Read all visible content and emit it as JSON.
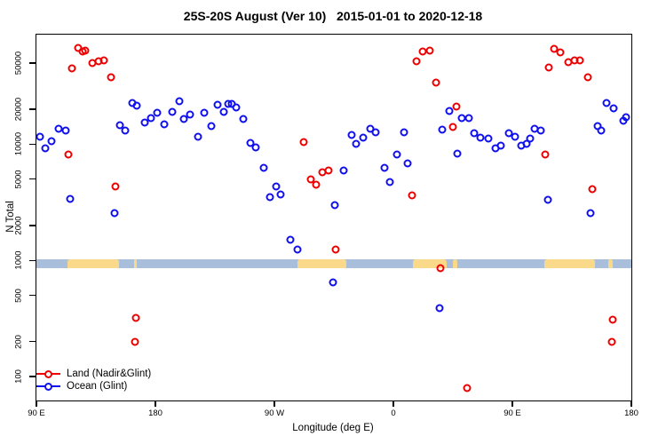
{
  "title": "25S-20S August (Ver 10)   2015-01-01 to 2020-12-18",
  "chart_data": {
    "type": "scatter",
    "title": "25S-20S August (Ver 10)   2015-01-01 to 2020-12-18",
    "xlabel": "Longitude (deg E)",
    "ylabel": "N Total",
    "x_axis": {
      "note": "longitude wrapped eastward starting at 90E; axis position in degrees east of 90E",
      "span_deg": 450,
      "tick_deg": [
        0,
        90,
        180,
        270,
        360,
        450
      ],
      "tick_labels": [
        "90 E",
        "180",
        "90 W",
        "0",
        "90 E",
        "180"
      ]
    },
    "y_axis": {
      "scale": "log10",
      "ticks": [
        100,
        200,
        500,
        1000,
        2000,
        5000,
        10000,
        20000,
        50000
      ],
      "tick_labels": [
        "100",
        "200",
        "500",
        "1000",
        "2000",
        "5000",
        "10000",
        "20000",
        "50000"
      ],
      "range": [
        75,
        80000
      ],
      "grid": false
    },
    "map_band": {
      "description": "coastline strip drawn across plot near N=1000; blue=ocean, tan=land",
      "value_top": 1030,
      "value_bottom": 850,
      "ocean_color": "#A9BEDB",
      "land_color": "#FAD98B",
      "land_segments_deg": [
        [
          23.5,
          62.5
        ],
        [
          73.9,
          76.2
        ],
        [
          197.5,
          234.4
        ],
        [
          284.6,
          310.3
        ],
        [
          314.8,
          318.4
        ],
        [
          384.2,
          422.5
        ],
        [
          432.3,
          435.9
        ]
      ]
    },
    "legend": [
      {
        "label": "Land (Nadir&Glint)",
        "color": "#EE0000"
      },
      {
        "label": "Ocean (Glint)",
        "color": "#1010EE"
      }
    ],
    "legend_position": "bottom-left",
    "series": [
      {
        "name": "Land (Nadir&Glint)",
        "color": "#EE0000",
        "points": [
          [
            24.0,
            8200
          ],
          [
            27.1,
            45000
          ],
          [
            31.4,
            67000
          ],
          [
            34.9,
            63000
          ],
          [
            37.1,
            64000
          ],
          [
            42.1,
            50000
          ],
          [
            46.8,
            52000
          ],
          [
            51.2,
            53000
          ],
          [
            56.4,
            38000
          ],
          [
            59.8,
            4300
          ],
          [
            74.5,
            200
          ],
          [
            75.2,
            320
          ],
          [
            202.4,
            10400
          ],
          [
            207.7,
            5000
          ],
          [
            211.6,
            4500
          ],
          [
            216.6,
            5700
          ],
          [
            221.3,
            5900
          ],
          [
            226.3,
            1250
          ],
          [
            284.3,
            3600
          ],
          [
            287.5,
            52000
          ],
          [
            292.4,
            63000
          ],
          [
            297.3,
            64000
          ],
          [
            302.2,
            34000
          ],
          [
            305.8,
            860
          ],
          [
            314.8,
            14000
          ],
          [
            317.5,
            21000
          ],
          [
            326.0,
            80
          ],
          [
            384.6,
            8200
          ],
          [
            387.7,
            46000
          ],
          [
            391.8,
            66000
          ],
          [
            396.3,
            62000
          ],
          [
            402.5,
            51000
          ],
          [
            407.0,
            53000
          ],
          [
            410.8,
            53000
          ],
          [
            417.1,
            38000
          ],
          [
            420.4,
            4100
          ],
          [
            435.2,
            200
          ],
          [
            436.1,
            310
          ]
        ]
      },
      {
        "name": "Ocean (Glint)",
        "color": "#1010EE",
        "points": [
          [
            2.7,
            11600
          ],
          [
            6.7,
            9300
          ],
          [
            11.4,
            10700
          ],
          [
            16.6,
            13600
          ],
          [
            22.0,
            13200
          ],
          [
            25.5,
            3400
          ],
          [
            59.1,
            2550
          ],
          [
            62.9,
            14600
          ],
          [
            67.4,
            13200
          ],
          [
            72.5,
            22700
          ],
          [
            75.9,
            21400
          ],
          [
            81.7,
            15500
          ],
          [
            86.6,
            16700
          ],
          [
            91.5,
            18500
          ],
          [
            96.7,
            14900
          ],
          [
            102.5,
            19000
          ],
          [
            107.8,
            23500
          ],
          [
            111.2,
            16600
          ],
          [
            116.4,
            18000
          ],
          [
            122.2,
            11600
          ],
          [
            127.1,
            18600
          ],
          [
            132.1,
            14400
          ],
          [
            136.8,
            22000
          ],
          [
            141.7,
            19100
          ],
          [
            145.1,
            22100
          ],
          [
            147.8,
            22400
          ],
          [
            151.3,
            20900
          ],
          [
            156.3,
            16400
          ],
          [
            161.9,
            10200
          ],
          [
            166.1,
            9400
          ],
          [
            171.9,
            6300
          ],
          [
            176.8,
            3500
          ],
          [
            181.3,
            4300
          ],
          [
            184.7,
            3700
          ],
          [
            192.1,
            1500
          ],
          [
            197.3,
            1250
          ],
          [
            224.1,
            650
          ],
          [
            225.7,
            3000
          ],
          [
            232.4,
            5900
          ],
          [
            238.4,
            12100
          ],
          [
            241.8,
            10000
          ],
          [
            247.0,
            11400
          ],
          [
            252.3,
            13600
          ],
          [
            256.4,
            12600
          ],
          [
            263.1,
            6300
          ],
          [
            267.5,
            4700
          ],
          [
            272.7,
            8100
          ],
          [
            278.1,
            12600
          ],
          [
            281.0,
            6800
          ],
          [
            304.7,
            390
          ],
          [
            307.1,
            13400
          ],
          [
            312.3,
            19400
          ],
          [
            318.3,
            8300
          ],
          [
            321.9,
            16700
          ],
          [
            326.9,
            16700
          ],
          [
            331.3,
            12500
          ],
          [
            336.0,
            11300
          ],
          [
            342.1,
            11200
          ],
          [
            347.4,
            9300
          ],
          [
            351.5,
            9800
          ],
          [
            357.1,
            12500
          ],
          [
            362.0,
            11600
          ],
          [
            366.5,
            9700
          ],
          [
            371.0,
            10100
          ],
          [
            373.6,
            11200
          ],
          [
            376.8,
            13600
          ],
          [
            381.7,
            13200
          ],
          [
            386.8,
            3300
          ],
          [
            419.1,
            2550
          ],
          [
            424.3,
            14400
          ],
          [
            427.1,
            13000
          ],
          [
            431.0,
            22700
          ],
          [
            436.5,
            20200
          ],
          [
            443.7,
            16000
          ],
          [
            446.0,
            17200
          ]
        ]
      }
    ]
  }
}
